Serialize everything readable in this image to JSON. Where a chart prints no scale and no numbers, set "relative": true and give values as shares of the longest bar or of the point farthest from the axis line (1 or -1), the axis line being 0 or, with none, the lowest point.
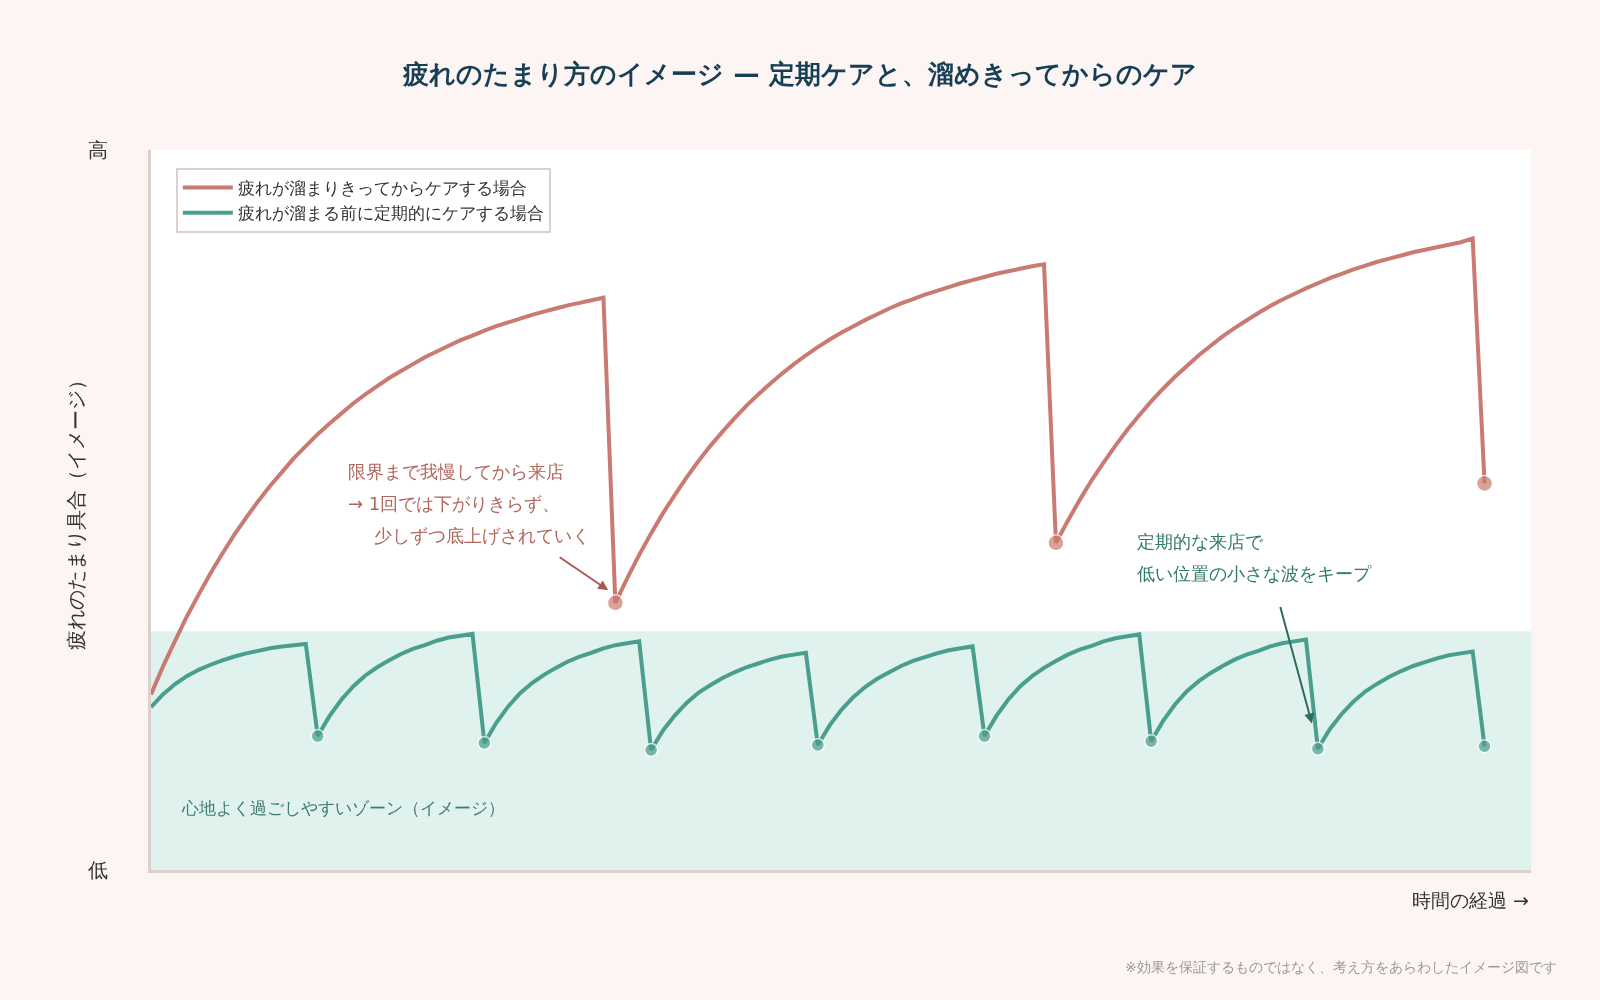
{
  "chart_data": {
    "type": "line",
    "relative": true,
    "title": "疲れのたまり方のイメージ — 定期ケアと、溜めきってからのケア",
    "xlabel": "時間の経過 →",
    "ylabel": "疲れのたまり具合（イメージ）",
    "legend": "top left",
    "line_style": "solid",
    "categories": [
      null,
      null,
      null,
      null,
      null,
      null,
      null,
      null,
      null,
      null,
      null,
      null,
      null,
      null,
      null,
      null,
      null,
      null,
      null,
      null,
      null,
      null,
      null,
      null,
      null,
      null,
      null,
      null,
      null,
      null,
      null,
      null,
      null,
      null,
      null,
      null,
      null,
      null,
      null,
      null,
      null,
      null,
      null,
      null,
      null,
      null,
      null,
      null,
      null,
      null,
      null,
      null,
      null,
      null,
      null,
      null,
      null,
      null,
      null,
      null,
      null,
      null,
      null,
      null,
      null,
      null,
      null,
      null,
      null,
      null,
      null,
      null,
      null,
      null,
      null,
      null,
      null,
      null,
      null,
      null,
      null,
      null,
      null,
      null,
      null,
      null,
      null,
      null,
      null,
      null,
      null,
      null,
      null,
      null,
      null,
      null,
      null,
      null,
      null,
      null,
      null,
      null,
      null,
      null,
      null,
      null,
      null,
      null,
      null,
      null,
      null,
      null,
      null
    ],
    "series": [
      {
        "name": "疲れが溜まりきってからケアする場合",
        "color": "#c97b72",
        "values": [
          0.278,
          0.322,
          0.362,
          0.401,
          0.436,
          0.47,
          0.501,
          0.531,
          0.558,
          0.584,
          0.608,
          0.63,
          0.652,
          0.671,
          0.69,
          0.707,
          0.723,
          0.739,
          0.753,
          0.766,
          0.779,
          0.79,
          0.801,
          0.812,
          0.821,
          0.83,
          0.839,
          0.846,
          0.854,
          0.861,
          0.867,
          0.873,
          0.879,
          0.884,
          0.889,
          0.894,
          0.898,
          0.902,
          0.906,
          0.423,
          0.462,
          0.499,
          0.533,
          0.565,
          0.594,
          0.622,
          0.648,
          0.672,
          0.694,
          0.715,
          0.735,
          0.753,
          0.77,
          0.786,
          0.801,
          0.815,
          0.828,
          0.84,
          0.851,
          0.861,
          0.871,
          0.88,
          0.889,
          0.897,
          0.904,
          0.911,
          0.917,
          0.923,
          0.929,
          0.934,
          0.939,
          0.944,
          0.948,
          0.952,
          0.956,
          0.959,
          0.518,
          0.553,
          0.586,
          0.617,
          0.645,
          0.672,
          0.697,
          0.72,
          0.742,
          0.762,
          0.781,
          0.798,
          0.815,
          0.83,
          0.845,
          0.858,
          0.87,
          0.882,
          0.893,
          0.903,
          0.912,
          0.921,
          0.929,
          0.937,
          0.944,
          0.951,
          0.957,
          0.963,
          0.968,
          0.973,
          0.978,
          0.982,
          0.986,
          0.99,
          0.994,
          1.0,
          0.612
        ]
      },
      {
        "name": "疲れが溜まる前に定期的にケアする場合",
        "color": "#4a9e8e",
        "values": [
          0.258,
          0.278,
          0.294,
          0.307,
          0.317,
          0.325,
          0.332,
          0.338,
          0.343,
          0.347,
          0.351,
          0.354,
          0.356,
          0.358,
          0.212,
          0.244,
          0.27,
          0.291,
          0.308,
          0.321,
          0.332,
          0.342,
          0.35,
          0.356,
          0.363,
          0.368,
          0.371,
          0.374,
          0.201,
          0.233,
          0.259,
          0.28,
          0.296,
          0.309,
          0.32,
          0.33,
          0.338,
          0.344,
          0.351,
          0.356,
          0.359,
          0.362,
          0.19,
          0.221,
          0.245,
          0.265,
          0.281,
          0.293,
          0.304,
          0.313,
          0.321,
          0.327,
          0.333,
          0.338,
          0.341,
          0.344,
          0.198,
          0.229,
          0.254,
          0.274,
          0.29,
          0.303,
          0.313,
          0.323,
          0.331,
          0.337,
          0.343,
          0.348,
          0.351,
          0.354,
          0.212,
          0.244,
          0.27,
          0.291,
          0.307,
          0.32,
          0.331,
          0.341,
          0.349,
          0.355,
          0.362,
          0.367,
          0.37,
          0.373,
          0.204,
          0.236,
          0.262,
          0.283,
          0.299,
          0.312,
          0.323,
          0.333,
          0.341,
          0.347,
          0.354,
          0.359,
          0.362,
          0.365,
          0.192,
          0.223,
          0.247,
          0.267,
          0.283,
          0.295,
          0.306,
          0.315,
          0.323,
          0.329,
          0.335,
          0.34,
          0.343,
          0.346,
          0.196
        ]
      }
    ],
    "bands": [
      {
        "axis": "y",
        "from": 0,
        "to": 0.378,
        "label": "心地よく過ごしやすいゾーン（イメージ）",
        "color": "#e0f2ed"
      }
    ],
    "annotations": [
      "高",
      "低",
      "限界まで我慢してから来店",
      "→ 1回では下がりきらず、",
      "少しずつ底上げされていく",
      "定期的な来店で",
      "低い位置の小さな波をキープ",
      "※効果を保証するものではなく、考え方をあらわしたイメージ図です"
    ]
  }
}
